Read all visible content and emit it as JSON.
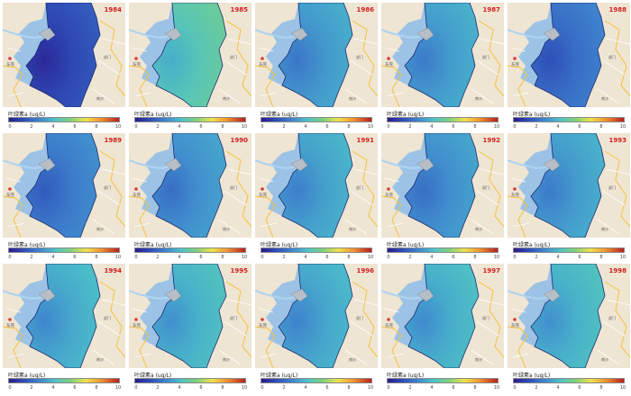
{
  "legend": {
    "title": "叶绿素a (ug/L)",
    "ticks": [
      "0",
      "2",
      "4",
      "6",
      "8",
      "10"
    ]
  },
  "map_labels": {
    "city": "东莞",
    "place": "虎门",
    "place2": "南沙"
  },
  "colors": {
    "land": "#efe5d3",
    "sea_outside": "#9cc3e6",
    "road_major": "#f2c23b",
    "road_minor": "#ffffff",
    "river": "#aed3ef",
    "year_label": "#d21e1e"
  },
  "panels": [
    {
      "year": "1984",
      "chla_level": 0.12
    },
    {
      "year": "1985",
      "chla_level": 0.45
    },
    {
      "year": "1986",
      "chla_level": 0.32
    },
    {
      "year": "1987",
      "chla_level": 0.33
    },
    {
      "year": "1988",
      "chla_level": 0.22
    },
    {
      "year": "1989",
      "chla_level": 0.25
    },
    {
      "year": "1990",
      "chla_level": 0.3
    },
    {
      "year": "1991",
      "chla_level": 0.34
    },
    {
      "year": "1992",
      "chla_level": 0.3
    },
    {
      "year": "1993",
      "chla_level": 0.33
    },
    {
      "year": "1994",
      "chla_level": 0.36
    },
    {
      "year": "1995",
      "chla_level": 0.38
    },
    {
      "year": "1996",
      "chla_level": 0.35
    },
    {
      "year": "1997",
      "chla_level": 0.37
    },
    {
      "year": "1998",
      "chla_level": 0.38
    }
  ]
}
